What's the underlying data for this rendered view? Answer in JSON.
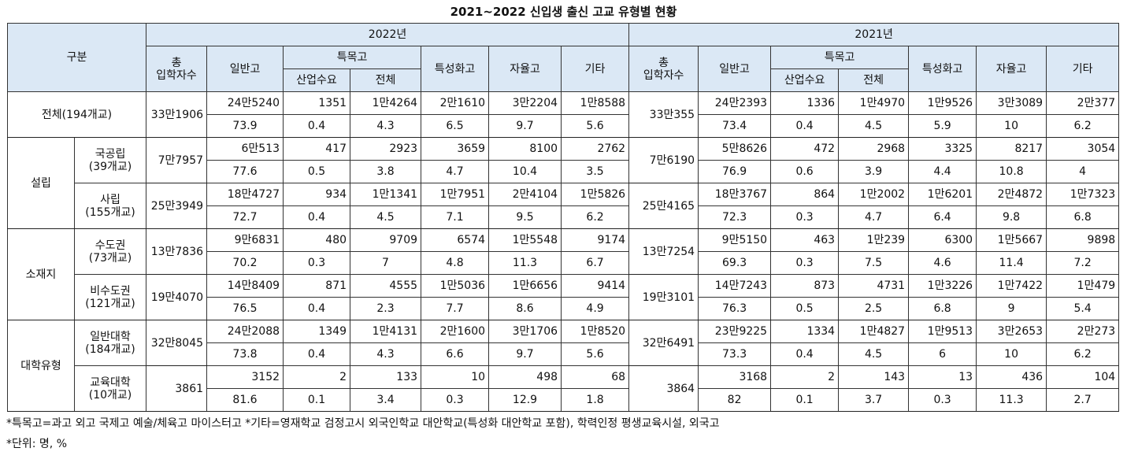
{
  "title": "2021~2022 신입생 출신 고교 유형별 현황",
  "header": {
    "category": "구분",
    "years": [
      "2022년",
      "2021년"
    ],
    "total_line1": "총",
    "total_line2": "입학자수",
    "general": "일반고",
    "special": "특목고",
    "special_industry": "산업수요",
    "special_all": "전체",
    "specialized": "특성화고",
    "autonomous": "자율고",
    "other": "기타"
  },
  "rows": {
    "total": {
      "label": "전체(194개교)",
      "y2022": {
        "total": "33만1906",
        "counts": [
          "24만5240",
          "1351",
          "1만4264",
          "2만1610",
          "3만2204",
          "1만8588"
        ],
        "pcts": [
          "73.9",
          "0.4",
          "4.3",
          "6.5",
          "9.7",
          "5.6"
        ]
      },
      "y2021": {
        "total": "33만355",
        "counts": [
          "24만2393",
          "1336",
          "1만4970",
          "1만9526",
          "3만3089",
          "2만377"
        ],
        "pcts": [
          "73.4",
          "0.4",
          "4.5",
          "5.9",
          "10",
          "6.2"
        ]
      }
    },
    "groups": [
      {
        "label": "설립",
        "subs": [
          {
            "name": "국공립",
            "schools": "(39개교)",
            "y2022": {
              "total": "7만7957",
              "counts": [
                "6만513",
                "417",
                "2923",
                "3659",
                "8100",
                "2762"
              ],
              "pcts": [
                "77.6",
                "0.5",
                "3.8",
                "4.7",
                "10.4",
                "3.5"
              ]
            },
            "y2021": {
              "total": "7만6190",
              "counts": [
                "5만8626",
                "472",
                "2968",
                "3325",
                "8217",
                "3054"
              ],
              "pcts": [
                "76.9",
                "0.6",
                "3.9",
                "4.4",
                "10.8",
                "4"
              ]
            }
          },
          {
            "name": "사립",
            "schools": "(155개교)",
            "y2022": {
              "total": "25만3949",
              "counts": [
                "18만4727",
                "934",
                "1만1341",
                "1만7951",
                "2만4104",
                "1만5826"
              ],
              "pcts": [
                "72.7",
                "0.4",
                "4.5",
                "7.1",
                "9.5",
                "6.2"
              ]
            },
            "y2021": {
              "total": "25만4165",
              "counts": [
                "18만3767",
                "864",
                "1만2002",
                "1만6201",
                "2만4872",
                "1만7323"
              ],
              "pcts": [
                "72.3",
                "0.3",
                "4.7",
                "6.4",
                "9.8",
                "6.8"
              ]
            }
          }
        ]
      },
      {
        "label": "소재지",
        "subs": [
          {
            "name": "수도권",
            "schools": "(73개교)",
            "y2022": {
              "total": "13만7836",
              "counts": [
                "9만6831",
                "480",
                "9709",
                "6574",
                "1만5548",
                "9174"
              ],
              "pcts": [
                "70.2",
                "0.3",
                "7",
                "4.8",
                "11.3",
                "6.7"
              ]
            },
            "y2021": {
              "total": "13만7254",
              "counts": [
                "9만5150",
                "463",
                "1만239",
                "6300",
                "1만5667",
                "9898"
              ],
              "pcts": [
                "69.3",
                "0.3",
                "7.5",
                "4.6",
                "11.4",
                "7.2"
              ]
            }
          },
          {
            "name": "비수도권",
            "schools": "(121개교)",
            "y2022": {
              "total": "19만4070",
              "counts": [
                "14만8409",
                "871",
                "4555",
                "1만5036",
                "1만6656",
                "9414"
              ],
              "pcts": [
                "76.5",
                "0.4",
                "2.3",
                "7.7",
                "8.6",
                "4.9"
              ]
            },
            "y2021": {
              "total": "19만3101",
              "counts": [
                "14만7243",
                "873",
                "4731",
                "1만3226",
                "1만7422",
                "1만479"
              ],
              "pcts": [
                "76.3",
                "0.5",
                "2.5",
                "6.8",
                "9",
                "5.4"
              ]
            }
          }
        ]
      },
      {
        "label": "대학유형",
        "subs": [
          {
            "name": "일반대학",
            "schools": "(184개교)",
            "y2022": {
              "total": "32만8045",
              "counts": [
                "24만2088",
                "1349",
                "1만4131",
                "2만1600",
                "3만1706",
                "1만8520"
              ],
              "pcts": [
                "73.8",
                "0.4",
                "4.3",
                "6.6",
                "9.7",
                "5.6"
              ]
            },
            "y2021": {
              "total": "32만6491",
              "counts": [
                "23만9225",
                "1334",
                "1만4827",
                "1만9513",
                "3만2653",
                "2만273"
              ],
              "pcts": [
                "73.3",
                "0.4",
                "4.5",
                "6",
                "10",
                "6.2"
              ]
            }
          },
          {
            "name": "교육대학",
            "schools": "(10개교)",
            "y2022": {
              "total": "3861",
              "counts": [
                "3152",
                "2",
                "133",
                "10",
                "498",
                "68"
              ],
              "pcts": [
                "81.6",
                "0.1",
                "3.4",
                "0.3",
                "12.9",
                "1.8"
              ]
            },
            "y2021": {
              "total": "3864",
              "counts": [
                "3168",
                "2",
                "143",
                "13",
                "436",
                "104"
              ],
              "pcts": [
                "82",
                "0.1",
                "3.7",
                "0.3",
                "11.3",
                "2.7"
              ]
            }
          }
        ]
      }
    ]
  },
  "notes": [
    "*특목고=과고 외고 국제고 예술/체육고 마이스터고  *기타=영재학교 검정고시 외국인학교 대안학교(특성화 대안학교 포함), 학력인정 평생교육시설, 외국고",
    "*단위: 명, %"
  ]
}
